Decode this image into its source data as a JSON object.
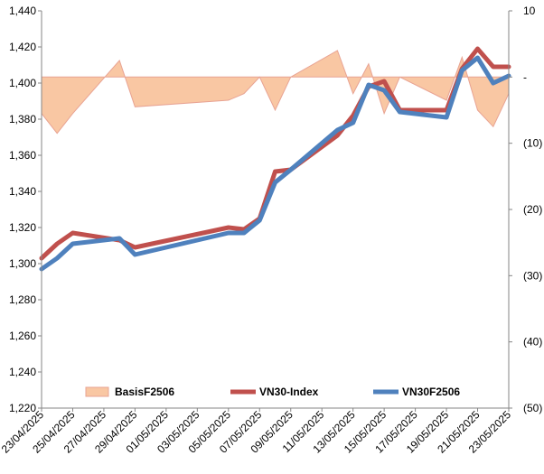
{
  "chart_data": {
    "type": "line",
    "x_tick_labels": [
      "23/04/2025",
      "25/04/2025",
      "27/04/2025",
      "29/04/2025",
      "01/05/2025",
      "03/05/2025",
      "05/05/2025",
      "07/05/2025",
      "09/05/2025",
      "11/05/2025",
      "13/05/2025",
      "15/05/2025",
      "17/05/2025",
      "19/05/2025",
      "21/05/2025",
      "23/05/2025"
    ],
    "x_dates": [
      "23/04/2025",
      "24/04/2025",
      "25/04/2025",
      "28/04/2025",
      "29/04/2025",
      "05/05/2025",
      "06/05/2025",
      "07/05/2025",
      "08/05/2025",
      "09/05/2025",
      "12/05/2025",
      "13/05/2025",
      "14/05/2025",
      "15/05/2025",
      "16/05/2025",
      "19/05/2025",
      "20/05/2025",
      "21/05/2025",
      "22/05/2025",
      "23/05/2025"
    ],
    "y_left": {
      "lim": [
        1220,
        1440
      ],
      "ticks": [
        "1,220",
        "1,240",
        "1,260",
        "1,280",
        "1,300",
        "1,320",
        "1,340",
        "1,360",
        "1,380",
        "1,400",
        "1,420",
        "1,440"
      ]
    },
    "y_right": {
      "lim": [
        -50,
        10
      ],
      "ticks": [
        "10",
        "-",
        "(10)",
        "(20)",
        "(30)",
        "(40)",
        "(50)"
      ]
    },
    "series": [
      {
        "name": "BasisF2506",
        "axis": "right",
        "kind": "area",
        "color": "#f9c7a3",
        "edge_color": "#e8a393",
        "values": [
          -5.5,
          -8.5,
          -5.5,
          2.5,
          -4.5,
          -3.5,
          -2.5,
          0,
          -5,
          0,
          4,
          -2.5,
          2,
          -5.5,
          0,
          -3.5,
          3,
          -5,
          -7.5,
          -2.5
        ]
      },
      {
        "name": "VN30-Index",
        "axis": "left",
        "kind": "line",
        "color": "#c0504d",
        "values": [
          1303,
          1311,
          1317,
          1313,
          1309,
          1320,
          1319,
          1325,
          1351,
          1352,
          1371,
          1382,
          1398,
          1401,
          1385,
          1385,
          1408,
          1419,
          1409,
          1409
        ]
      },
      {
        "name": "VN30F2506",
        "axis": "left",
        "kind": "line",
        "color": "#4f81bd",
        "values": [
          1297,
          1303,
          1311,
          1314,
          1305,
          1317,
          1317,
          1324,
          1345,
          1352,
          1374,
          1378,
          1399,
          1396,
          1384,
          1381,
          1407,
          1414,
          1400,
          1404
        ]
      }
    ],
    "legend": {
      "placement": "bottom-inside"
    },
    "grid": false
  }
}
